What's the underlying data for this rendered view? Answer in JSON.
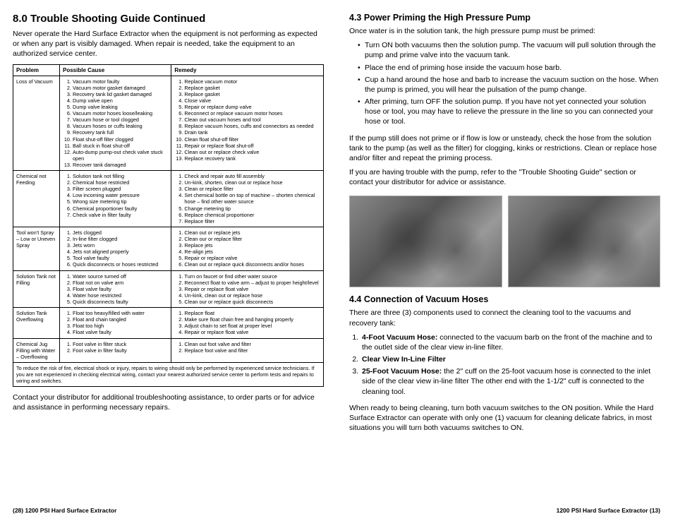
{
  "left": {
    "title": "8.0   Trouble Shooting Guide Continued",
    "intro": "Never operate the Hard Surface Extractor when the equipment is not performing as expected or when any part is visibly damaged. When repair is needed, take the equipment to an authorized service center.",
    "table": {
      "headers": [
        "Problem",
        "Possible Cause",
        "Remedy"
      ],
      "rows": [
        {
          "problem": "Loss of Vacuum",
          "causes": [
            "Vacuum motor faulty",
            "Vacuum motor gasket damaged",
            "Recovery tank lid gasket damaged",
            "Dump valve open",
            "Dump valve leaking",
            "Vacuum motor hoses loose/leaking",
            "Vacuum hose or tool clogged",
            "Vacuum hoses or cuffs leaking",
            "Recovery tank full",
            "Float shut-off filter clogged",
            "Ball stuck in float shut-off",
            "Auto-dump pump-out check valve stuck open",
            "Recover tank damaged"
          ],
          "remedies": [
            "Replace vacuum motor",
            "Replace gasket",
            "Replace gasket",
            "Close valve",
            "Repair or replace dump valve",
            "Reconnect or replace vacuum motor hoses",
            "Clean out vacuum hoses and tool",
            "Replace vacuum hoses, cuffs and connectors as needed",
            "Drain tank",
            "Clean float shut-off filter",
            "Repair or replace float shut-off",
            "Clean out or replace check valve",
            "Replace recovery tank"
          ]
        },
        {
          "problem": "Chemical not Feeding",
          "causes": [
            "Solution tank not filling",
            "Chemical hose restricted",
            "Filter screen plugged",
            "Low incoming water pressure",
            "Wrong size metering tip",
            "Chemical proportioner faulty",
            "Check valve in filter faulty"
          ],
          "remedies": [
            "Check and repair auto fill assembly",
            "Un-kink, shorten, clean out or replace hose",
            "Clean or replace filter",
            "Set chemical bottle on top of machine – shorten chemical hose – find other water source",
            "Change metering tip",
            "Replace chemical proportioner",
            "Replace filter"
          ]
        },
        {
          "problem": "Tool won't Spray – Low or Uneven Spray",
          "causes": [
            "Jets clogged",
            "In-line filter clogged",
            "Jets worn",
            "Jets not aligned properly",
            "Tool valve faulty",
            "Quick disconnects or hoses restricted"
          ],
          "remedies": [
            "Clean out or replace jets",
            "Clean our or replace filter",
            "Replace jets",
            "Re-align jets",
            "Repair or replace valve",
            "Clean out or replace quick disconnects and/or hoses"
          ]
        },
        {
          "problem": "Solution Tank not Filling",
          "causes": [
            "Water source turned off",
            "Float not on valve arm",
            "Float valve faulty",
            "Water hose restricted",
            "Quick disconnects faulty"
          ],
          "remedies": [
            "Turn on faucet or find other water source",
            "Reconnect float to valve arm – adjust to proper height/level",
            "Repair or replace float valve",
            "Un-kink, clean out or replace hose",
            "Clean our or replace quick disconnects"
          ]
        },
        {
          "problem": "Solution Tank Overflowing",
          "causes": [
            "Float too heavy/filled with water",
            "Float and chain tangled",
            "Float too high",
            "Float valve faulty"
          ],
          "remedies": [
            "Replace float",
            "Make sure float chain free and hanging properly",
            "Adjust chain to set float at proper level",
            "Repair or replace float valve"
          ]
        },
        {
          "problem": "Chemical Jug Filling with Water – Overflowing",
          "causes": [
            "Foot valve in filter stuck",
            "Foot valve in filter faulty"
          ],
          "remedies": [
            "Clean out foot valve and filter",
            "Replace foot valve and filter"
          ]
        }
      ],
      "note": "To reduce the risk of fire, electrical shock or injury, repairs to wiring should only be performed by experienced service technicians. If you are not experienced in checking electrical wiring, contact your nearest authorized service center to perform tests and repairs to wiring and switches."
    },
    "closing": "Contact your distributor for additional troubleshooting assistance, to order parts or for advice and assistance in performing necessary repairs.",
    "footer": "(28) 1200 PSI Hard Surface Extractor"
  },
  "right": {
    "s43_title": "4.3   Power Priming the High Pressure Pump",
    "s43_intro": "Once water is in the solution tank, the high pressure pump must be primed:",
    "s43_bullets": [
      "Turn ON both vacuums then the solution pump. The vacuum will pull solution through the pump and prime valve into the vacuum tank.",
      "Place the end of priming hose inside the vacuum hose barb.",
      "Cup a hand around the hose and barb to increase the vacuum suction on the hose. When the pump is primed, you will hear the pulsation of the pump change.",
      "After priming, turn OFF the solution pump. If you have not yet connected your solution hose or tool, you may have to relieve the pressure in the line so you can connected your hose or tool."
    ],
    "s43_p1": "If the pump still does not prime or if flow is low or unsteady, check the hose from the solution tank to the pump (as well as the filter) for clogging, kinks or restrictions. Clean or replace hose and/or filter and repeat the priming process.",
    "s43_p2": "If you are having trouble with the pump, refer to the \"Trouble Shooting Guide\" section or contact your distributor for advice or assistance.",
    "s44_title": "4.4   Connection of Vacuum Hoses",
    "s44_intro": "There are three (3) components used to connect the cleaning tool to the vacuums and recovery tank:",
    "s44_list": [
      {
        "bold": "4-Foot Vacuum Hose:",
        "text": " connected to the vacuum barb on the front of the machine and to the outlet side of the clear view in-line filter."
      },
      {
        "bold": "Clear View In-Line Filter",
        "text": ""
      },
      {
        "bold": "25-Foot Vacuum Hose:",
        "text": " the 2\" cuff on the 25-foot vacuum hose is connected to the inlet side of the clear view in-line filter The other end with the 1-1/2\" cuff is connected to the cleaning tool."
      }
    ],
    "s44_closing": "When ready to being cleaning, turn both vacuum switches to the ON position. While the Hard Surface Extractor can operate with only one (1) vacuum for cleaning delicate fabrics, in most situations you will turn both vacuums switches to ON.",
    "footer": "1200 PSI Hard Surface Extractor (13)"
  }
}
